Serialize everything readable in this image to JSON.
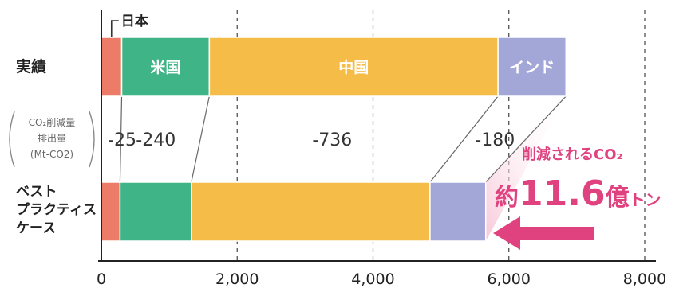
{
  "chart_data": {
    "type": "bar",
    "orientation": "horizontal",
    "stacked": true,
    "xlim": [
      0,
      8000
    ],
    "x_ticks": [
      0,
      2000,
      4000,
      6000,
      8000
    ],
    "x_tick_labels": [
      "0",
      "2,000",
      "4,000",
      "6,000",
      "8,000"
    ],
    "grid": "vertical dashed",
    "categories": [
      {
        "label_lines": [
          "実績"
        ]
      },
      {
        "label_lines": [
          "ベスト",
          "プラクティス",
          "ケース"
        ]
      }
    ],
    "series": [
      {
        "name": "日本",
        "color": "#ec7b67",
        "values": [
          300,
          275
        ]
      },
      {
        "name": "米国",
        "color": "#3fb487",
        "values": [
          1290,
          1050
        ]
      },
      {
        "name": "中国",
        "color": "#f5bd47",
        "values": [
          4250,
          3514
        ]
      },
      {
        "name": "インド",
        "color": "#a3a7d8",
        "values": [
          1000,
          820
        ]
      }
    ],
    "reduction_label_lines": [
      "CO₂削減量",
      "排出量",
      "(Mt-CO2)"
    ],
    "reductions": [
      "-25",
      "-240",
      "-736",
      "-180"
    ],
    "callout": {
      "line1": "削減されるCO₂",
      "prefix": "約",
      "number": "11.6",
      "unit_big": "億",
      "unit_small": "トン",
      "color": "#e0427f"
    }
  }
}
